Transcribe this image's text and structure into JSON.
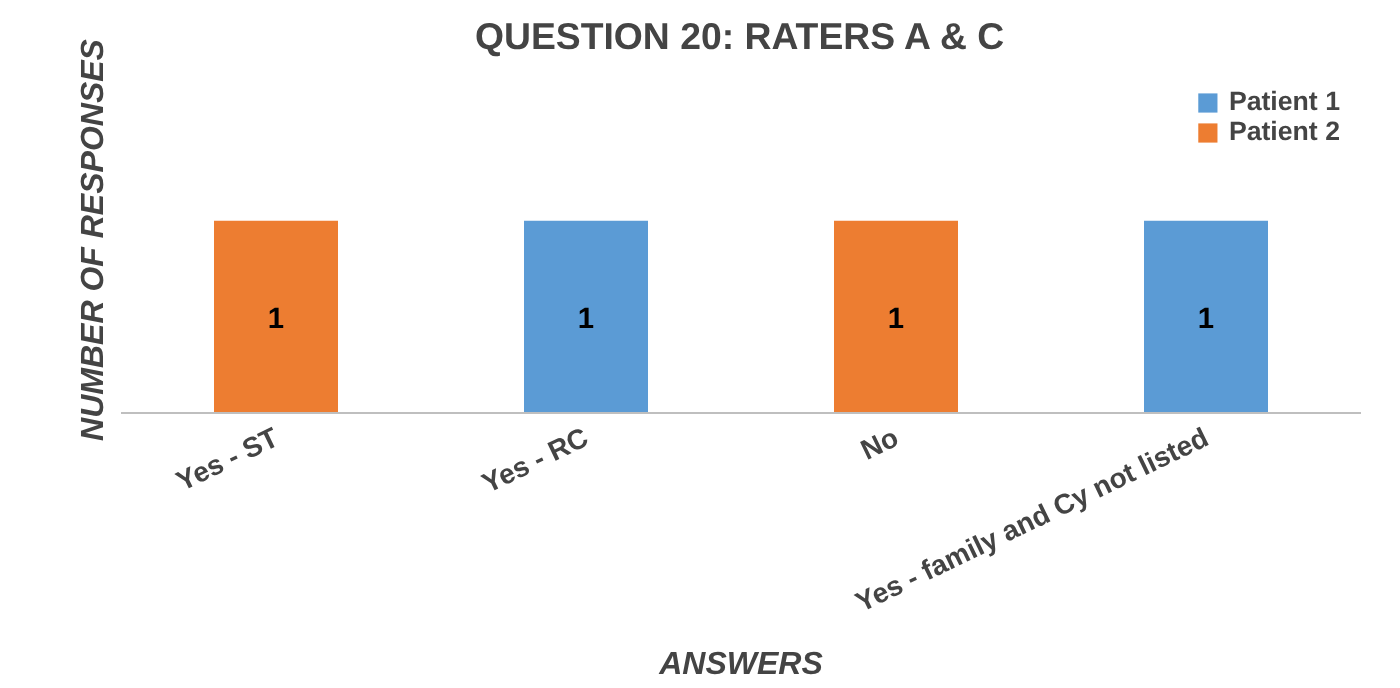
{
  "chart_data": {
    "type": "bar",
    "title": "QUESTION 20: RATERS A & C",
    "xlabel": "ANSWERS",
    "ylabel": "NUMBER OF RESPONSES",
    "categories": [
      "Yes - ST",
      "Yes - RC",
      "No",
      "Yes - family and Cy not listed"
    ],
    "stacked": true,
    "series": [
      {
        "name": "Patient 2",
        "color": "#ed7d31",
        "values": [
          1,
          null,
          1,
          null
        ]
      },
      {
        "name": "Patient 1",
        "color": "#5b9bd5",
        "values": [
          null,
          1,
          null,
          1
        ]
      }
    ],
    "data_labels": true,
    "legend": "top right",
    "grid": false,
    "tick_labels": "x"
  }
}
